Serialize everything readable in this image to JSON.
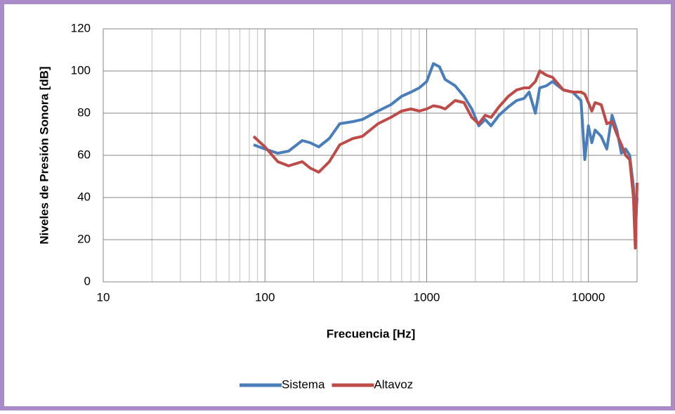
{
  "chart_data": {
    "type": "line",
    "xlabel": "Frecuencia [Hz]",
    "ylabel": "Niveles de Presión Sonora [dB]",
    "xscale": "log",
    "grid": true,
    "legend": "bottom",
    "xlim": [
      10,
      20000
    ],
    "ylim": [
      0,
      120
    ],
    "xticks": [
      10,
      100,
      1000,
      10000
    ],
    "xminor_ticks": [
      20,
      30,
      40,
      50,
      60,
      70,
      80,
      90,
      200,
      300,
      400,
      500,
      600,
      700,
      800,
      900,
      2000,
      3000,
      4000,
      5000,
      6000,
      7000,
      8000,
      9000
    ],
    "yticks": [
      0,
      20,
      40,
      60,
      80,
      100,
      120
    ],
    "x": [
      85,
      100,
      120,
      140,
      170,
      190,
      215,
      250,
      290,
      350,
      400,
      500,
      600,
      700,
      800,
      900,
      1000,
      1100,
      1200,
      1300,
      1500,
      1700,
      1900,
      2100,
      2300,
      2500,
      2800,
      3200,
      3600,
      4000,
      4300,
      4700,
      5000,
      5500,
      6000,
      7000,
      8000,
      9000,
      9500,
      10000,
      10500,
      11000,
      12000,
      13000,
      14000,
      15000,
      16000,
      17000,
      18000,
      19000,
      19500,
      20000
    ],
    "series": [
      {
        "name": "Sistema",
        "color": "#4a7ebb",
        "values": [
          65,
          63,
          61,
          62,
          67,
          66,
          64,
          68,
          75,
          76,
          77,
          81,
          84,
          88,
          90,
          92,
          95,
          103.5,
          102,
          96,
          93,
          88,
          82,
          74,
          77,
          74,
          79,
          83,
          86,
          87,
          90,
          80,
          92,
          93,
          95,
          91,
          90,
          86,
          58,
          74,
          66,
          72,
          69,
          63,
          79,
          72,
          61,
          63,
          60,
          45,
          25,
          40
        ]
      },
      {
        "name": "Altavoz",
        "color": "#be4b48",
        "values": [
          69,
          64,
          57,
          55,
          57,
          54,
          52,
          57,
          65,
          68,
          69,
          75,
          78,
          81,
          82,
          81,
          82,
          83.5,
          83,
          82,
          86,
          85,
          78,
          75,
          79,
          78,
          83,
          88,
          91,
          92,
          92,
          95,
          100,
          98,
          97,
          91,
          90,
          90,
          89,
          85,
          81,
          85,
          84,
          75,
          76,
          70,
          65,
          60,
          58,
          40,
          16,
          47
        ]
      }
    ]
  }
}
